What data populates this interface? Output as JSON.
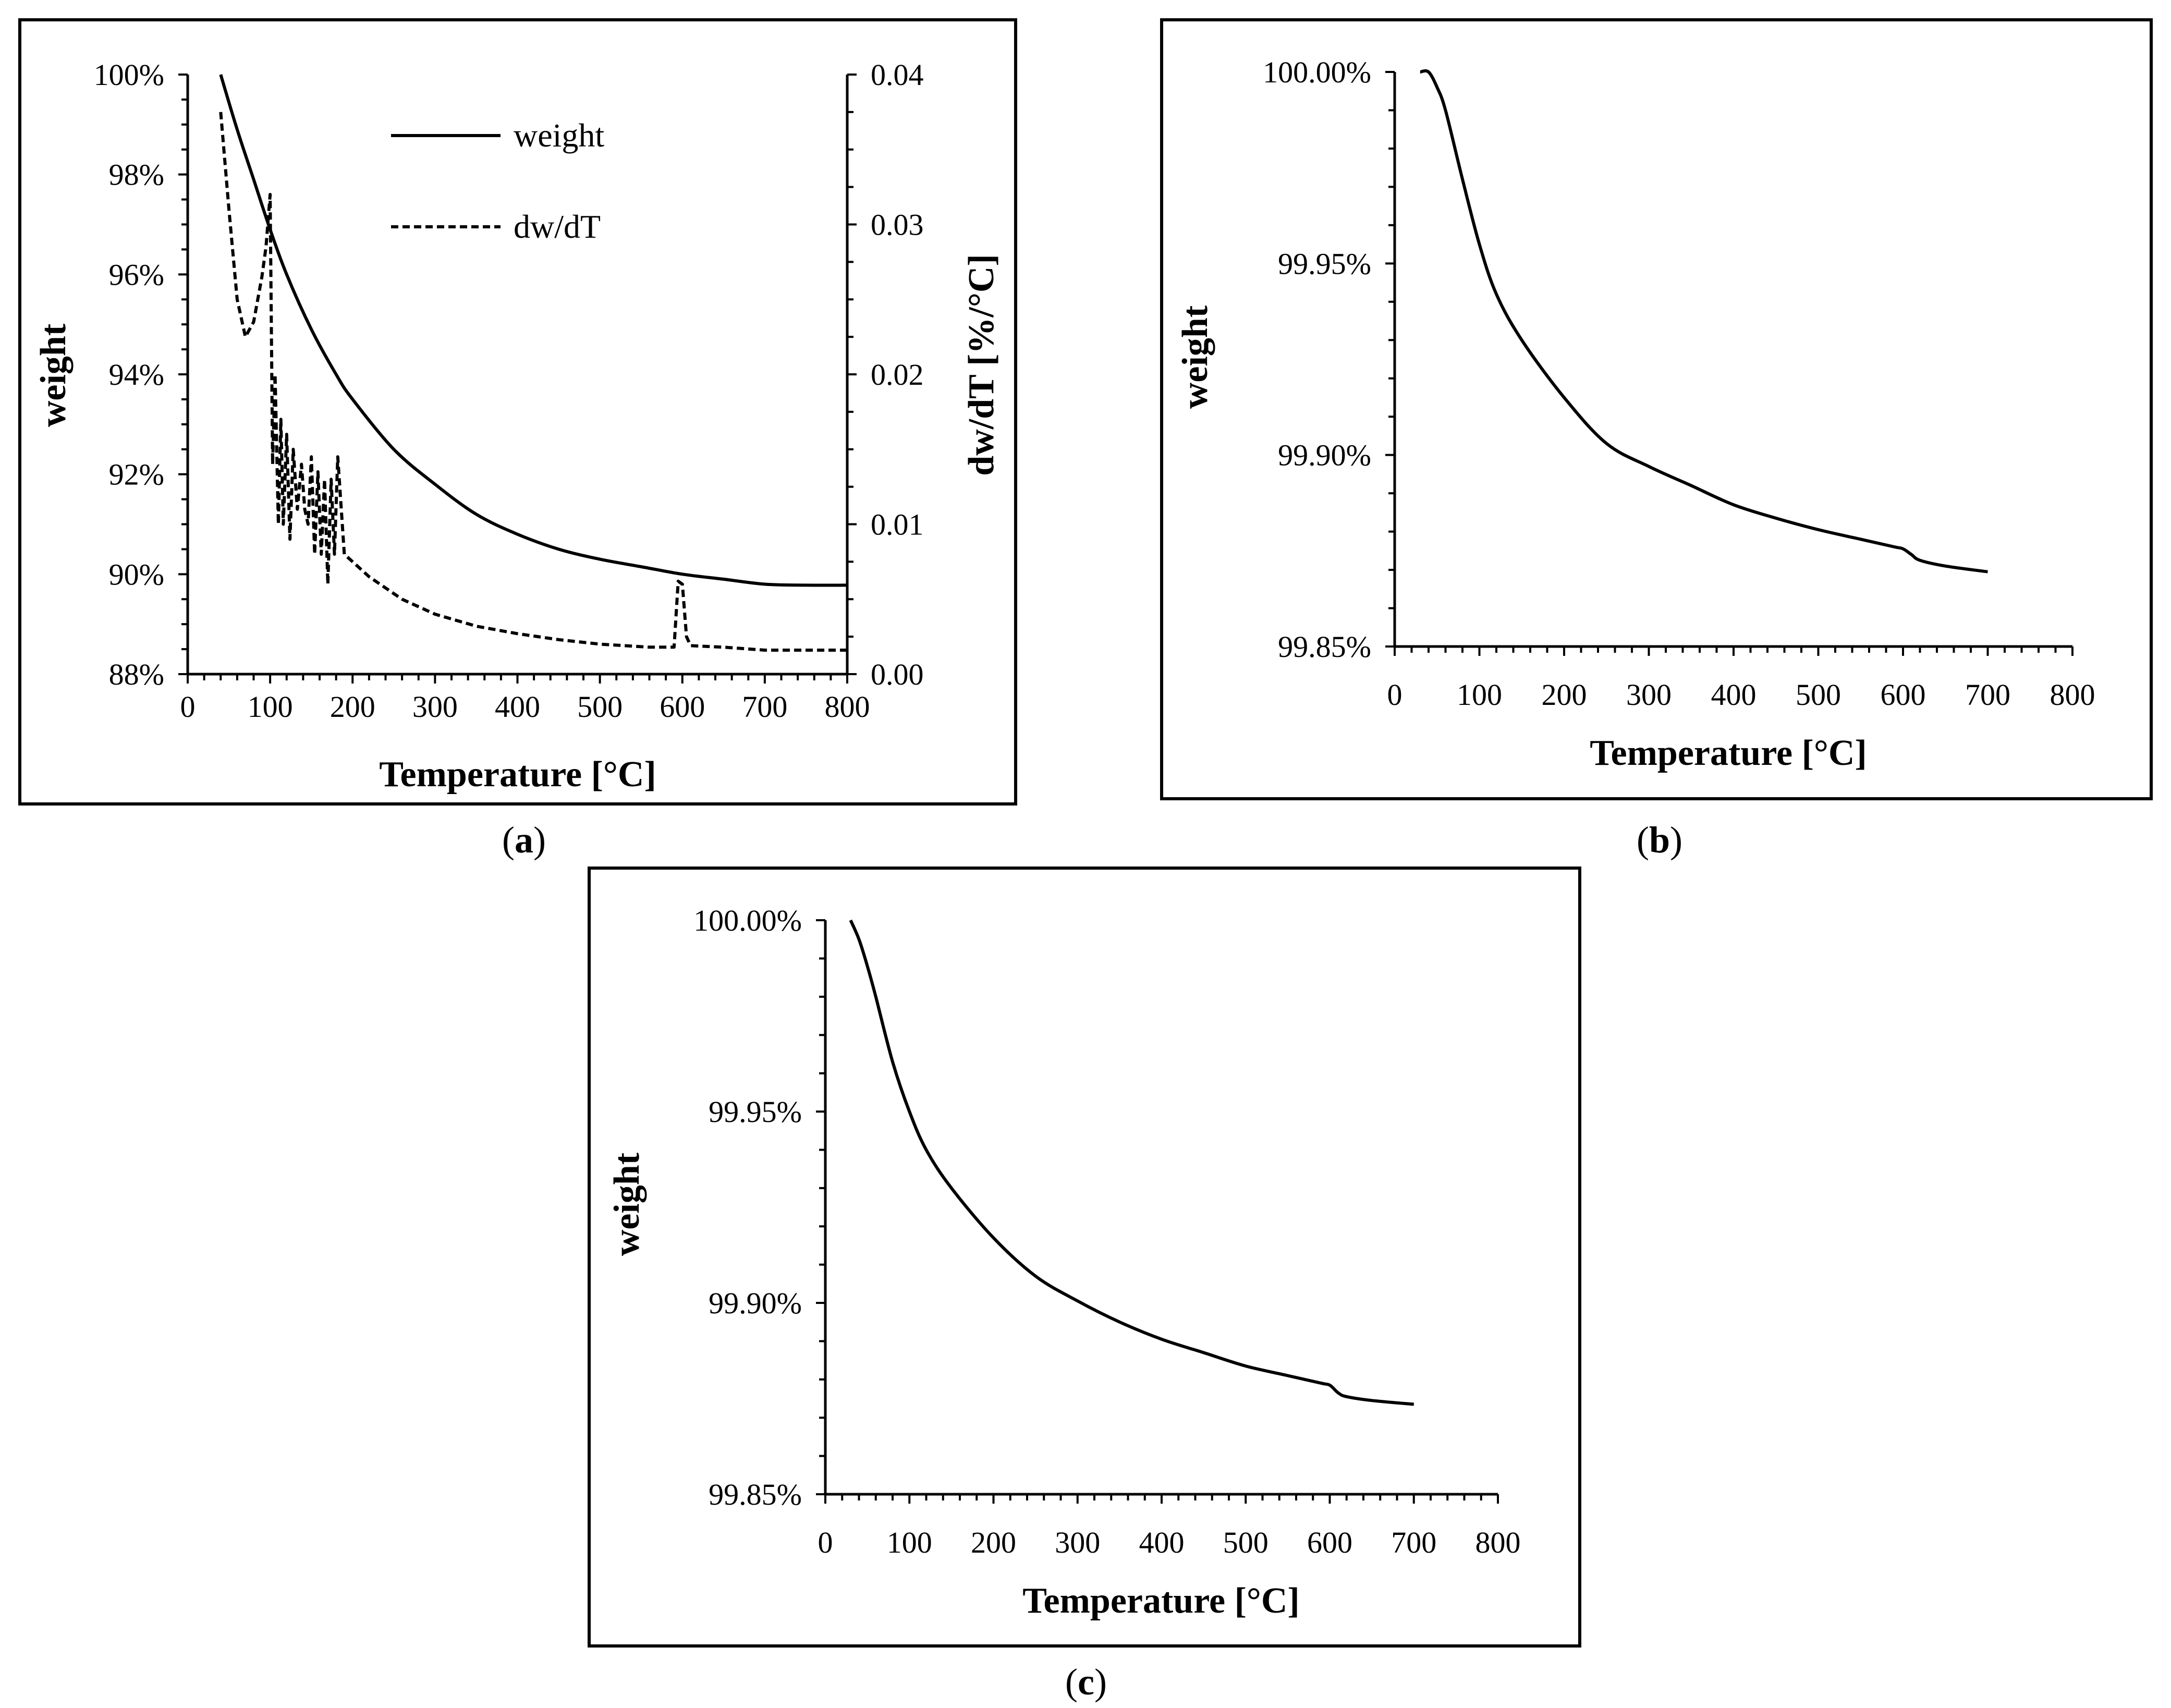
{
  "chart_data": [
    {
      "panel": "a",
      "panel_label_text": "a",
      "type": "line",
      "xlabel": "Temperature [°C]",
      "ylabel": "weight",
      "y2label": "dw/dT  [%/°C]",
      "xlim": [
        0,
        800
      ],
      "ylim": [
        88,
        100
      ],
      "y2lim": [
        0,
        0.04
      ],
      "xticks": [
        "0",
        "100",
        "200",
        "300",
        "400",
        "500",
        "600",
        "700",
        "800"
      ],
      "yticks": [
        "88%",
        "90%",
        "92%",
        "94%",
        "96%",
        "98%",
        "100%"
      ],
      "y2ticks": [
        "0.00",
        "0.01",
        "0.02",
        "0.03",
        "0.04"
      ],
      "legend": [
        "weight",
        "dw/dT"
      ],
      "series": [
        {
          "name": "weight",
          "axis": "left",
          "style": "solid",
          "x": [
            40,
            60,
            80,
            100,
            120,
            150,
            180,
            200,
            250,
            300,
            350,
            400,
            450,
            500,
            550,
            600,
            650,
            700,
            750,
            800
          ],
          "y": [
            100.0,
            98.9,
            97.9,
            96.9,
            96.0,
            94.9,
            94.0,
            93.5,
            92.5,
            91.8,
            91.2,
            90.8,
            90.5,
            90.3,
            90.15,
            90.0,
            89.9,
            89.8,
            89.78,
            89.78
          ]
        },
        {
          "name": "dw/dT",
          "axis": "right",
          "style": "dashed",
          "x": [
            40,
            50,
            60,
            70,
            80,
            90,
            95,
            100,
            103,
            106,
            110,
            113,
            116,
            120,
            124,
            128,
            133,
            138,
            142,
            146,
            150,
            154,
            158,
            162,
            166,
            170,
            174,
            178,
            182,
            190,
            220,
            260,
            300,
            350,
            400,
            450,
            500,
            560,
            590,
            595,
            600,
            605,
            610,
            650,
            700,
            750,
            800
          ],
          "y": [
            0.0375,
            0.031,
            0.025,
            0.0225,
            0.0235,
            0.0265,
            0.0285,
            0.032,
            0.014,
            0.02,
            0.01,
            0.017,
            0.01,
            0.016,
            0.009,
            0.015,
            0.011,
            0.014,
            0.011,
            0.01,
            0.0145,
            0.008,
            0.0135,
            0.008,
            0.013,
            0.006,
            0.013,
            0.008,
            0.0145,
            0.008,
            0.0065,
            0.005,
            0.004,
            0.0032,
            0.0027,
            0.0023,
            0.002,
            0.0018,
            0.0018,
            0.0062,
            0.006,
            0.0025,
            0.0019,
            0.0018,
            0.0016,
            0.0016,
            0.0016
          ]
        }
      ]
    },
    {
      "panel": "b",
      "panel_label_text": "b",
      "type": "line",
      "xlabel": "Temperature [°C]",
      "ylabel": "weight",
      "xlim": [
        0,
        800
      ],
      "ylim": [
        99.85,
        100.0
      ],
      "xticks": [
        "0",
        "100",
        "200",
        "300",
        "400",
        "500",
        "600",
        "700",
        "800"
      ],
      "yticks": [
        "99.85%",
        "99.90%",
        "99.95%",
        "100.00%"
      ],
      "series": [
        {
          "name": "weight",
          "style": "solid",
          "x": [
            30,
            40,
            50,
            60,
            80,
            100,
            120,
            150,
            200,
            250,
            300,
            350,
            400,
            450,
            500,
            550,
            590,
            600,
            610,
            620,
            650,
            700
          ],
          "y": [
            100.0,
            100.0,
            99.996,
            99.99,
            99.972,
            99.955,
            99.942,
            99.93,
            99.915,
            99.903,
            99.897,
            99.892,
            99.887,
            99.8835,
            99.8805,
            99.878,
            99.876,
            99.8755,
            99.874,
            99.8725,
            99.871,
            99.8695
          ]
        }
      ]
    },
    {
      "panel": "c",
      "panel_label_text": "c",
      "type": "line",
      "xlabel": "Temperature [°C]",
      "ylabel": "weight",
      "xlim": [
        0,
        800
      ],
      "ylim": [
        99.85,
        100.0
      ],
      "xticks": [
        "0",
        "100",
        "200",
        "300",
        "400",
        "500",
        "600",
        "700",
        "800"
      ],
      "yticks": [
        "99.85%",
        "99.90%",
        "99.95%",
        "100.00%"
      ],
      "series": [
        {
          "name": "weight",
          "style": "solid",
          "x": [
            30,
            40,
            50,
            60,
            80,
            100,
            120,
            150,
            200,
            250,
            300,
            350,
            400,
            450,
            500,
            550,
            590,
            600,
            610,
            620,
            650,
            700
          ],
          "y": [
            100.0,
            99.995,
            99.988,
            99.98,
            99.963,
            99.95,
            99.94,
            99.93,
            99.917,
            99.907,
            99.9005,
            99.895,
            99.8905,
            99.887,
            99.8835,
            99.881,
            99.879,
            99.8785,
            99.8765,
            99.8755,
            99.8745,
            99.8735
          ]
        }
      ]
    }
  ]
}
